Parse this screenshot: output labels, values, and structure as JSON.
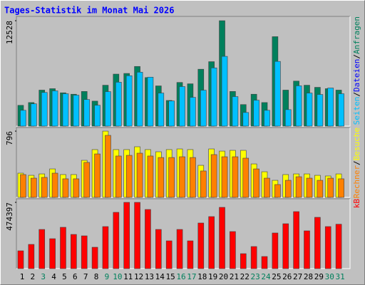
{
  "chart_data": [
    {
      "type": "bar",
      "title": "Tages-Statistik im Monat Mai 2026",
      "ylim": [
        0,
        12870
      ],
      "yticks": [
        12528
      ],
      "series": [
        {
          "name": "Anfragen",
          "color": "#00805c",
          "label_color": "#00805c",
          "values": [
            2470,
            2800,
            4280,
            4450,
            3960,
            3790,
            4120,
            2970,
            4860,
            6180,
            6260,
            7090,
            5770,
            4780,
            3050,
            5190,
            5030,
            6760,
            7660,
            12528,
            4120,
            2560,
            3790,
            2800,
            10630,
            4280,
            5350,
            4860,
            4610,
            4450,
            4280
          ]
        },
        {
          "name": "Dateien",
          "color": "#00c0ff",
          "label_color": "#0000ff",
          "values": [
            1880,
            2650,
            4000,
            4190,
            3850,
            3680,
            3160,
            2480,
            4100,
            5220,
            5990,
            6410,
            5820,
            3930,
            2990,
            4700,
            3420,
            4270,
            6920,
            8290,
            3510,
            1620,
            3080,
            1880,
            7690,
            1960,
            4790,
            3930,
            3760,
            4530,
            3850
          ]
        }
      ],
      "extra_label": "Seiten",
      "extra_label_color": "#00c0ff",
      "separator": "/"
    },
    {
      "type": "bar",
      "ylim": [
        0,
        822
      ],
      "yticks": [
        796
      ],
      "series": [
        {
          "name": "Besuche",
          "color": "#ffff00",
          "label_color": "#ffff00",
          "values": [
            291,
            265,
            282,
            342,
            274,
            274,
            445,
            574,
            796,
            574,
            574,
            608,
            574,
            548,
            574,
            582,
            574,
            385,
            582,
            556,
            565,
            565,
            402,
            308,
            205,
            274,
            282,
            282,
            265,
            257,
            282
          ]
        },
        {
          "name": "Rechner",
          "color": "#ff8000",
          "label_color": "#ff8000",
          "values": [
            274,
            231,
            240,
            291,
            223,
            223,
            420,
            522,
            745,
            497,
            505,
            531,
            497,
            479,
            479,
            488,
            479,
            317,
            514,
            488,
            488,
            471,
            342,
            231,
            154,
            205,
            248,
            231,
            205,
            231,
            223
          ]
        }
      ]
    },
    {
      "type": "bar",
      "ylim": [
        0,
        489700
      ],
      "yticks": [
        474397
      ],
      "series": [
        {
          "name": "kB",
          "color": "#ff0000",
          "label_color": "#ff0000",
          "values": [
            127500,
            173400,
            280500,
            214200,
            295900,
            244800,
            234600,
            153000,
            301000,
            403000,
            474397,
            474397,
            423400,
            280500,
            198900,
            280500,
            198900,
            326500,
            372400,
            438700,
            265300,
            107100,
            158100,
            86700,
            255100,
            321400,
            408100,
            270400,
            367300,
            301000,
            318000
          ]
        }
      ],
      "categories": [
        "1",
        "2",
        "3",
        "4",
        "5",
        "6",
        "7",
        "8",
        "9",
        "10",
        "11",
        "12",
        "13",
        "14",
        "15",
        "16",
        "17",
        "18",
        "19",
        "20",
        "21",
        "22",
        "23",
        "24",
        "25",
        "26",
        "27",
        "28",
        "29",
        "30",
        "31"
      ],
      "category_colors": [
        "#000000",
        "#000000",
        "#00805c",
        "#000000",
        "#000000",
        "#000000",
        "#000000",
        "#000000",
        "#00805c",
        "#00805c",
        "#000000",
        "#000000",
        "#000000",
        "#000000",
        "#000000",
        "#00805c",
        "#00805c",
        "#000000",
        "#000000",
        "#000000",
        "#000000",
        "#000000",
        "#00805c",
        "#00805c",
        "#000000",
        "#000000",
        "#000000",
        "#000000",
        "#000000",
        "#00805c",
        "#00805c"
      ]
    }
  ]
}
